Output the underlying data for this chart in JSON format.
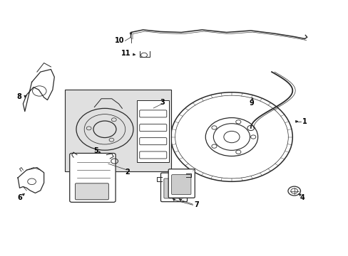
{
  "background_color": "#ffffff",
  "line_color": "#2a2a2a",
  "box_fill": "#e0e0e0",
  "fig_width": 4.89,
  "fig_height": 3.6,
  "dpi": 100,
  "font_size": 7
}
